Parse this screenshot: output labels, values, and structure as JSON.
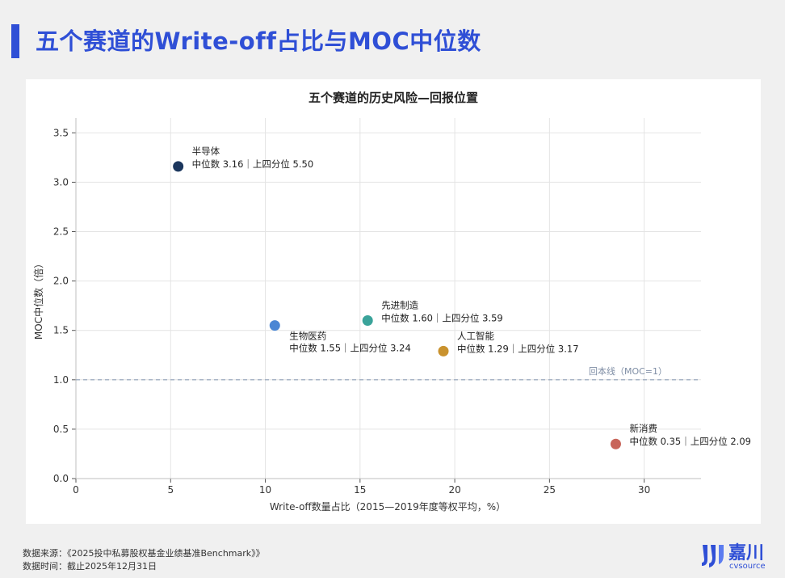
{
  "page": {
    "title": "五个赛道的Write-off占比与MOC中位数"
  },
  "footer": {
    "source": "数据来源：《2025投中私募股权基金业绩基准Benchmark》》",
    "time": "数据时间：截止2025年12月31日"
  },
  "logo": {
    "brand_cn": "嘉川",
    "brand_en": "cvsource",
    "icon": "cvsource-logo-icon"
  },
  "colors": {
    "accent": "#2f4fd6",
    "grid": "#e4e4e4",
    "axis": "#bfbfbf"
  },
  "chart_data": {
    "type": "scatter",
    "title": "五个赛道的历史风险—回报位置",
    "xlabel": "Write-off数量占比（2015—2019年度等权平均，%）",
    "ylabel": "MOC中位数（倍）",
    "xlim": [
      0,
      33
    ],
    "ylim": [
      0,
      3.65
    ],
    "xticks": [
      0,
      5,
      10,
      15,
      20,
      25,
      30
    ],
    "yticks": [
      0.0,
      0.5,
      1.0,
      1.5,
      2.0,
      2.5,
      3.0,
      3.5
    ],
    "xtick_labels": [
      "0",
      "5",
      "10",
      "15",
      "20",
      "25",
      "30"
    ],
    "ytick_labels": [
      "0.0",
      "0.5",
      "1.0",
      "1.5",
      "2.0",
      "2.5",
      "3.0",
      "3.5"
    ],
    "grid": true,
    "reference_line": {
      "y": 1.0,
      "label": "回本线（MOC=1）"
    },
    "points": [
      {
        "name": "半导体",
        "x": 5.4,
        "y": 3.16,
        "detail": "中位数 3.16｜上四分位 5.50",
        "color": "#1b365d",
        "label_pos": "above-right"
      },
      {
        "name": "生物医药",
        "x": 10.5,
        "y": 1.55,
        "detail": "中位数 1.55｜上四分位 3.24",
        "color": "#4a86d4",
        "label_pos": "below-right"
      },
      {
        "name": "先进制造",
        "x": 15.4,
        "y": 1.6,
        "detail": "中位数 1.60｜上四分位 3.59",
        "color": "#3aa39a",
        "label_pos": "above-right"
      },
      {
        "name": "人工智能",
        "x": 19.4,
        "y": 1.29,
        "detail": "中位数 1.29｜上四分位 3.17",
        "color": "#c9922e",
        "label_pos": "above-right"
      },
      {
        "name": "新消费",
        "x": 28.5,
        "y": 0.35,
        "detail": "中位数 0.35｜上四分位 2.09",
        "color": "#c8655a",
        "label_pos": "above-right"
      }
    ]
  }
}
